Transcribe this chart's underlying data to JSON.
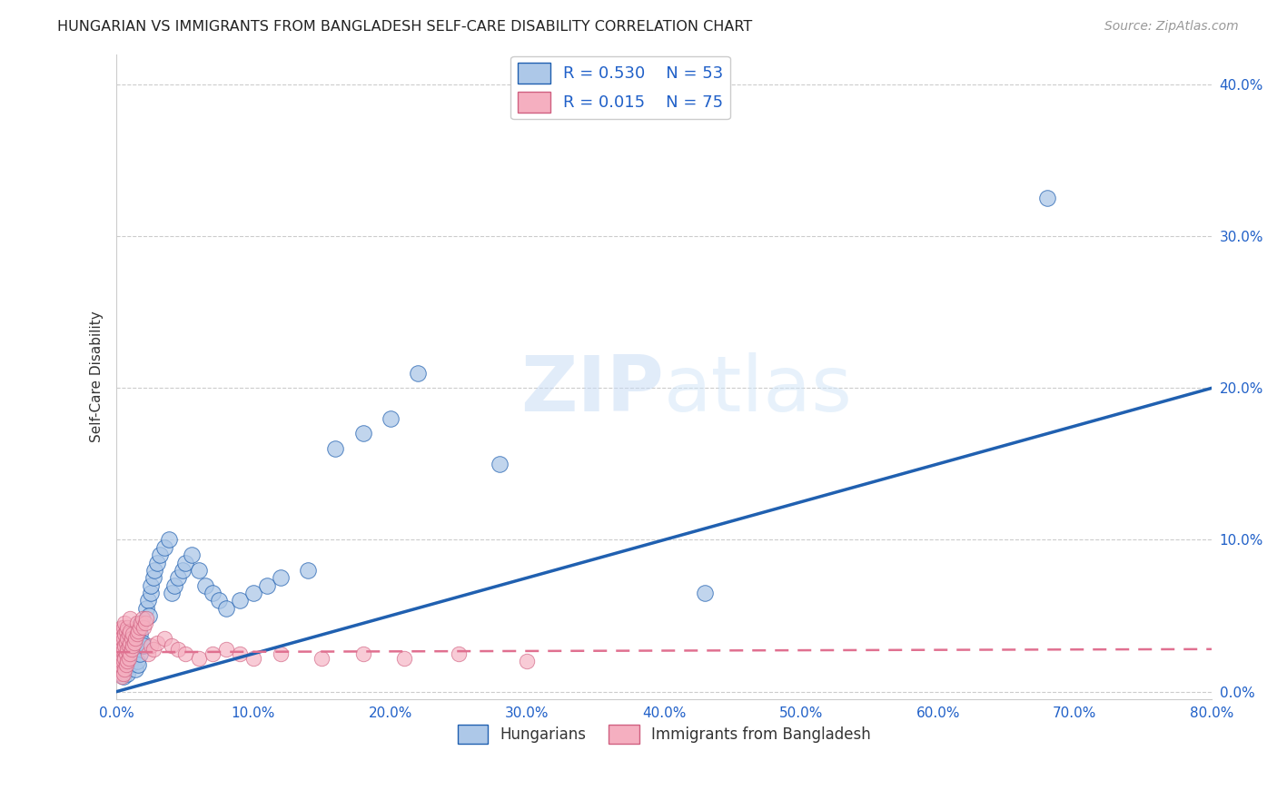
{
  "title": "HUNGARIAN VS IMMIGRANTS FROM BANGLADESH SELF-CARE DISABILITY CORRELATION CHART",
  "source": "Source: ZipAtlas.com",
  "ylabel": "Self-Care Disability",
  "xlim": [
    0.0,
    0.8
  ],
  "ylim": [
    -0.005,
    0.42
  ],
  "yticks": [
    0.0,
    0.1,
    0.2,
    0.3,
    0.4
  ],
  "xticks": [
    0.0,
    0.1,
    0.2,
    0.3,
    0.4,
    0.5,
    0.6,
    0.7,
    0.8
  ],
  "R_hungarian": 0.53,
  "N_hungarian": 53,
  "R_bangladesh": 0.015,
  "N_bangladesh": 75,
  "hungarian_color": "#adc8e8",
  "bangladesh_color": "#f5afc0",
  "line_hungarian_color": "#2060b0",
  "line_bangladesh_color": "#e07090",
  "background_color": "#ffffff",
  "hun_line_x0": 0.0,
  "hun_line_y0": 0.0,
  "hun_line_x1": 0.8,
  "hun_line_y1": 0.2,
  "bang_line_x0": 0.0,
  "bang_line_y0": 0.026,
  "bang_line_x1": 0.8,
  "bang_line_y1": 0.028,
  "hungarian_x": [
    0.005,
    0.007,
    0.008,
    0.009,
    0.01,
    0.01,
    0.011,
    0.012,
    0.013,
    0.014,
    0.015,
    0.015,
    0.016,
    0.016,
    0.017,
    0.017,
    0.018,
    0.019,
    0.02,
    0.022,
    0.023,
    0.024,
    0.025,
    0.025,
    0.027,
    0.028,
    0.03,
    0.032,
    0.035,
    0.038,
    0.04,
    0.042,
    0.045,
    0.048,
    0.05,
    0.055,
    0.06,
    0.065,
    0.07,
    0.075,
    0.08,
    0.09,
    0.1,
    0.11,
    0.12,
    0.14,
    0.16,
    0.18,
    0.2,
    0.22,
    0.28,
    0.43,
    0.68
  ],
  "hungarian_y": [
    0.01,
    0.015,
    0.012,
    0.02,
    0.018,
    0.025,
    0.022,
    0.03,
    0.028,
    0.015,
    0.035,
    0.02,
    0.04,
    0.018,
    0.038,
    0.025,
    0.045,
    0.032,
    0.03,
    0.055,
    0.06,
    0.05,
    0.065,
    0.07,
    0.075,
    0.08,
    0.085,
    0.09,
    0.095,
    0.1,
    0.065,
    0.07,
    0.075,
    0.08,
    0.085,
    0.09,
    0.08,
    0.07,
    0.065,
    0.06,
    0.055,
    0.06,
    0.065,
    0.07,
    0.075,
    0.08,
    0.16,
    0.17,
    0.18,
    0.21,
    0.15,
    0.065,
    0.325
  ],
  "bangladesh_x": [
    0.001,
    0.001,
    0.002,
    0.002,
    0.002,
    0.002,
    0.003,
    0.003,
    0.003,
    0.003,
    0.003,
    0.004,
    0.004,
    0.004,
    0.004,
    0.004,
    0.005,
    0.005,
    0.005,
    0.005,
    0.005,
    0.006,
    0.006,
    0.006,
    0.006,
    0.006,
    0.007,
    0.007,
    0.007,
    0.007,
    0.008,
    0.008,
    0.008,
    0.008,
    0.009,
    0.009,
    0.009,
    0.01,
    0.01,
    0.01,
    0.01,
    0.011,
    0.011,
    0.012,
    0.012,
    0.013,
    0.014,
    0.015,
    0.015,
    0.016,
    0.017,
    0.018,
    0.019,
    0.02,
    0.021,
    0.022,
    0.023,
    0.025,
    0.027,
    0.03,
    0.035,
    0.04,
    0.045,
    0.05,
    0.06,
    0.07,
    0.08,
    0.09,
    0.1,
    0.12,
    0.15,
    0.18,
    0.21,
    0.25,
    0.3
  ],
  "bangladesh_y": [
    0.02,
    0.03,
    0.015,
    0.025,
    0.035,
    0.04,
    0.012,
    0.018,
    0.025,
    0.03,
    0.038,
    0.01,
    0.02,
    0.028,
    0.035,
    0.042,
    0.012,
    0.02,
    0.028,
    0.035,
    0.042,
    0.015,
    0.022,
    0.03,
    0.038,
    0.045,
    0.018,
    0.025,
    0.032,
    0.04,
    0.02,
    0.028,
    0.035,
    0.042,
    0.022,
    0.03,
    0.038,
    0.025,
    0.032,
    0.04,
    0.048,
    0.028,
    0.035,
    0.03,
    0.038,
    0.032,
    0.035,
    0.038,
    0.045,
    0.04,
    0.042,
    0.045,
    0.048,
    0.042,
    0.045,
    0.048,
    0.025,
    0.03,
    0.028,
    0.032,
    0.035,
    0.03,
    0.028,
    0.025,
    0.022,
    0.025,
    0.028,
    0.025,
    0.022,
    0.025,
    0.022,
    0.025,
    0.022,
    0.025,
    0.02
  ]
}
